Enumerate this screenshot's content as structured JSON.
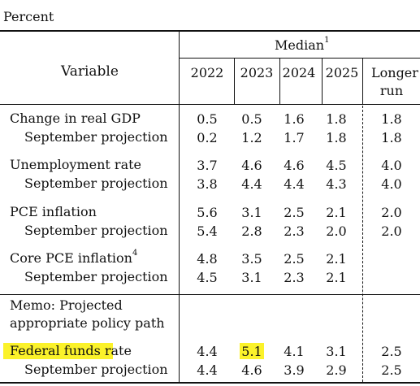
{
  "unit_label": "Percent",
  "header": {
    "variable": "Variable",
    "median": "Median",
    "median_note": "1",
    "years": [
      "2022",
      "2023",
      "2024",
      "2025"
    ],
    "longer_run_line1": "Longer",
    "longer_run_line2": "run"
  },
  "rows": {
    "gdp": {
      "label": "Change in real GDP",
      "values": [
        "0.5",
        "0.5",
        "1.6",
        "1.8",
        "1.8"
      ]
    },
    "gdp_sep": {
      "label": "September projection",
      "values": [
        "0.2",
        "1.2",
        "1.7",
        "1.8",
        "1.8"
      ]
    },
    "unemp": {
      "label": "Unemployment rate",
      "values": [
        "3.7",
        "4.6",
        "4.6",
        "4.5",
        "4.0"
      ]
    },
    "unemp_sep": {
      "label": "September projection",
      "values": [
        "3.8",
        "4.4",
        "4.4",
        "4.3",
        "4.0"
      ]
    },
    "pce": {
      "label": "PCE inflation",
      "values": [
        "5.6",
        "3.1",
        "2.5",
        "2.1",
        "2.0"
      ]
    },
    "pce_sep": {
      "label": "September projection",
      "values": [
        "5.4",
        "2.8",
        "2.3",
        "2.0",
        "2.0"
      ]
    },
    "core": {
      "label": "Core PCE inflation",
      "note": "4",
      "values": [
        "4.8",
        "3.5",
        "2.5",
        "2.1"
      ]
    },
    "core_sep": {
      "label": "September projection",
      "values": [
        "4.5",
        "3.1",
        "2.3",
        "2.1"
      ]
    },
    "memo_line1": "Memo: Projected",
    "memo_line2": "appropriate policy path",
    "ffr": {
      "label": "Federal funds rate",
      "values": [
        "4.4",
        "5.1",
        "4.1",
        "3.1",
        "2.5"
      ]
    },
    "ffr_sep": {
      "label": "September projection",
      "values": [
        "4.4",
        "4.6",
        "3.9",
        "2.9",
        "2.5"
      ]
    }
  },
  "highlight_color": "#fbf22a"
}
